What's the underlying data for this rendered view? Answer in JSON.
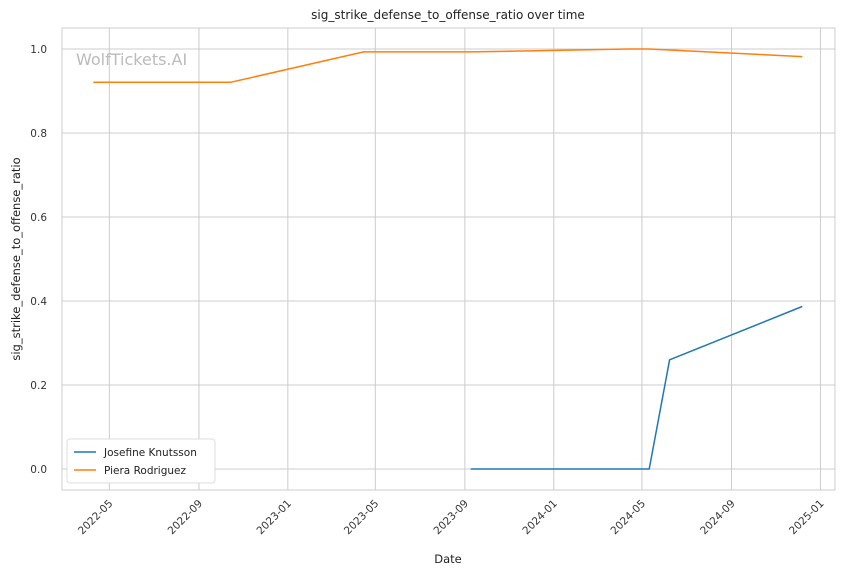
{
  "watermark": "WolfTickets.AI",
  "chart_data": {
    "type": "line",
    "title": "sig_strike_defense_to_offense_ratio over time",
    "xlabel": "Date",
    "ylabel": "sig_strike_defense_to_offense_ratio",
    "xlim": [
      "2022-02-25",
      "2025-01-21"
    ],
    "ylim": [
      -0.05,
      1.05
    ],
    "grid": true,
    "legend_position": "lower-left",
    "x_ticks": [
      "2022-05",
      "2022-09",
      "2023-01",
      "2023-05",
      "2023-09",
      "2024-01",
      "2024-05",
      "2024-09",
      "2025-01"
    ],
    "y_ticks": [
      0.0,
      0.2,
      0.4,
      0.6,
      0.8,
      1.0
    ],
    "series": [
      {
        "name": "Josefine Knutsson",
        "color": "#1f77b4",
        "x": [
          "2023-09-09",
          "2024-05-11",
          "2024-06-08",
          "2024-12-07"
        ],
        "y": [
          0.0,
          0.0,
          0.26,
          0.387
        ]
      },
      {
        "name": "Piera Rodriguez",
        "color": "#ff7f0e",
        "x": [
          "2022-04-09",
          "2022-10-15",
          "2023-04-15",
          "2023-09-09",
          "2024-01-13",
          "2024-04-13",
          "2024-05-11",
          "2024-12-07"
        ],
        "y": [
          0.921,
          0.921,
          0.993,
          0.993,
          0.997,
          1.0,
          1.0,
          0.982
        ]
      }
    ]
  }
}
